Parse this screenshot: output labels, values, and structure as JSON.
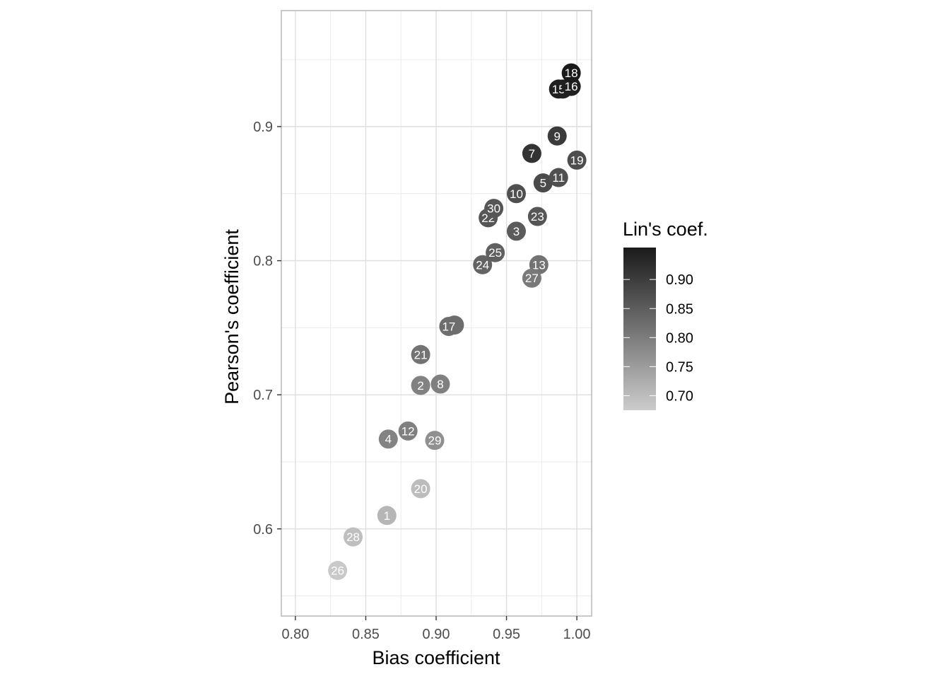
{
  "chart_data": {
    "type": "scatter",
    "title": "",
    "xlabel": "Bias coefficient",
    "ylabel": "Pearson's coefficient",
    "xlim": [
      0.79,
      1.0105
    ],
    "ylim": [
      0.535,
      0.9865
    ],
    "x_ticks": [
      0.8,
      0.85,
      0.9,
      0.95,
      1.0
    ],
    "x_tick_labels": [
      "0.80",
      "0.85",
      "0.90",
      "0.95",
      "1.00"
    ],
    "y_ticks": [
      0.6,
      0.7,
      0.8,
      0.9
    ],
    "y_tick_labels": [
      "0.6",
      "0.7",
      "0.8",
      "0.9"
    ],
    "grid": true,
    "color_legend": {
      "title": "Lin's coef.",
      "position": "right",
      "range": [
        0.675,
        0.955
      ],
      "ticks": [
        0.7,
        0.75,
        0.8,
        0.85,
        0.9
      ],
      "tick_labels": [
        "0.70",
        "0.75",
        "0.80",
        "0.85",
        "0.90"
      ],
      "low_color": "#cccccc",
      "high_color": "#1a1a1a"
    },
    "points": [
      {
        "label": "1",
        "x": 0.865,
        "y": 0.61,
        "lin": 0.71
      },
      {
        "label": "2",
        "x": 0.889,
        "y": 0.707,
        "lin": 0.792
      },
      {
        "label": "3",
        "x": 0.957,
        "y": 0.822,
        "lin": 0.853
      },
      {
        "label": "4",
        "x": 0.866,
        "y": 0.667,
        "lin": 0.79
      },
      {
        "label": "5",
        "x": 0.976,
        "y": 0.858,
        "lin": 0.88
      },
      {
        "label": "6",
        "x": 0.913,
        "y": 0.752,
        "lin": 0.825
      },
      {
        "label": "7",
        "x": 0.968,
        "y": 0.88,
        "lin": 0.915
      },
      {
        "label": "8",
        "x": 0.903,
        "y": 0.708,
        "lin": 0.795
      },
      {
        "label": "9",
        "x": 0.986,
        "y": 0.893,
        "lin": 0.903
      },
      {
        "label": "10",
        "x": 0.957,
        "y": 0.85,
        "lin": 0.872
      },
      {
        "label": "11",
        "x": 0.987,
        "y": 0.862,
        "lin": 0.87
      },
      {
        "label": "12",
        "x": 0.88,
        "y": 0.673,
        "lin": 0.795
      },
      {
        "label": "13",
        "x": 0.973,
        "y": 0.797,
        "lin": 0.815
      },
      {
        "label": "14",
        "x": 0.99,
        "y": 0.928,
        "lin": 0.945
      },
      {
        "label": "15",
        "x": 0.987,
        "y": 0.928,
        "lin": 0.945
      },
      {
        "label": "16",
        "x": 0.996,
        "y": 0.93,
        "lin": 0.945
      },
      {
        "label": "17",
        "x": 0.909,
        "y": 0.751,
        "lin": 0.825
      },
      {
        "label": "18",
        "x": 0.996,
        "y": 0.94,
        "lin": 0.955
      },
      {
        "label": "19",
        "x": 1.0,
        "y": 0.875,
        "lin": 0.875
      },
      {
        "label": "20",
        "x": 0.889,
        "y": 0.63,
        "lin": 0.7
      },
      {
        "label": "21",
        "x": 0.889,
        "y": 0.73,
        "lin": 0.815
      },
      {
        "label": "22",
        "x": 0.937,
        "y": 0.832,
        "lin": 0.86
      },
      {
        "label": "23",
        "x": 0.972,
        "y": 0.833,
        "lin": 0.86
      },
      {
        "label": "24",
        "x": 0.933,
        "y": 0.797,
        "lin": 0.84
      },
      {
        "label": "25",
        "x": 0.942,
        "y": 0.806,
        "lin": 0.845
      },
      {
        "label": "26",
        "x": 0.83,
        "y": 0.569,
        "lin": 0.68
      },
      {
        "label": "27",
        "x": 0.968,
        "y": 0.787,
        "lin": 0.805
      },
      {
        "label": "28",
        "x": 0.841,
        "y": 0.594,
        "lin": 0.695
      },
      {
        "label": "29",
        "x": 0.899,
        "y": 0.666,
        "lin": 0.77
      },
      {
        "label": "30",
        "x": 0.941,
        "y": 0.839,
        "lin": 0.86
      }
    ]
  }
}
